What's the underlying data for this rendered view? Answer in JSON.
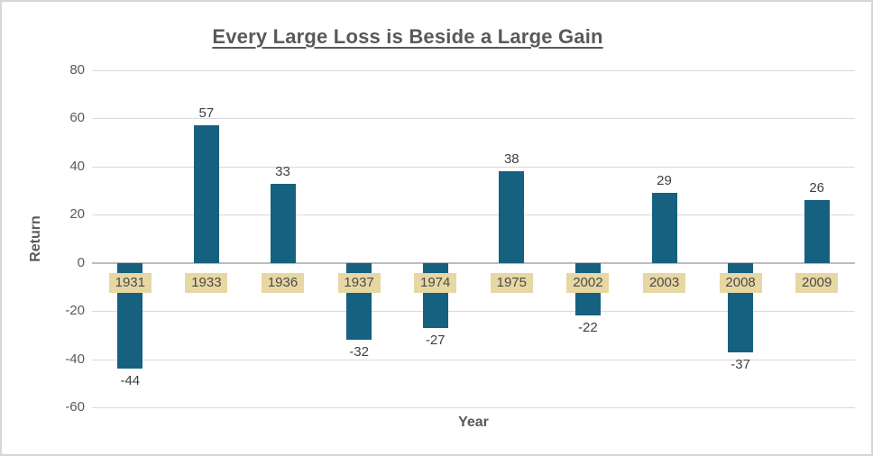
{
  "chart_data": {
    "type": "bar",
    "title": "Every Large Loss is Beside a Large Gain",
    "xlabel": "Year",
    "ylabel": "Return",
    "categories": [
      "1931",
      "1933",
      "1936",
      "1937",
      "1974",
      "1975",
      "2002",
      "2003",
      "2008",
      "2009"
    ],
    "values": [
      -44,
      57,
      33,
      -32,
      -27,
      38,
      -22,
      29,
      -37,
      26
    ],
    "ylim": [
      -60,
      80
    ],
    "yticks": [
      80,
      60,
      40,
      20,
      0,
      -20,
      -40,
      -60
    ],
    "grid": true,
    "legend": "none",
    "bar_color": "#16617f",
    "gridline_color": "#d9d9d9",
    "category_label_background": "#e7d7a3",
    "title_color": "#595959",
    "label_color": "#404040"
  }
}
